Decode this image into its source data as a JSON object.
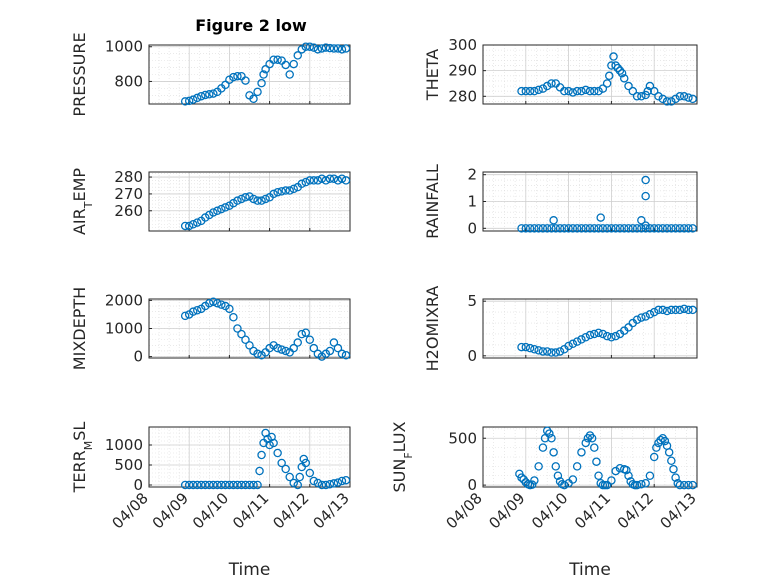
{
  "figure_title": "Figure 2 low",
  "colors": {
    "marker": "#0072BD",
    "axis": "#262626",
    "grid": "#dcdcdc",
    "background": "#ffffff"
  },
  "chart_data": [
    {
      "type": "scatter",
      "title": "Figure 2 low",
      "ylabel": "PRESSURE",
      "ylabel_parts": [
        [
          "PRESSURE",
          ""
        ]
      ],
      "xlabel": "",
      "ylim": [
        670,
        1010
      ],
      "yticks": [
        800,
        1000
      ],
      "xlim": [
        0,
        5
      ],
      "xticks": [
        "04/08",
        "04/09",
        "04/10",
        "04/11",
        "04/12",
        "04/13"
      ],
      "show_xticklabels": false,
      "grid": true,
      "legend": "none",
      "series": [
        {
          "x": [
            0.9,
            1.0,
            1.1,
            1.2,
            1.3,
            1.4,
            1.5,
            1.6,
            1.7,
            1.8,
            1.9,
            2.0,
            2.1,
            2.2,
            2.3,
            2.4,
            2.5,
            2.6,
            2.7,
            2.8,
            2.85,
            2.9,
            3.0,
            3.1,
            3.2,
            3.3,
            3.4,
            3.5,
            3.6,
            3.7,
            3.8,
            3.9,
            4.0,
            4.1,
            4.2,
            4.3,
            4.4,
            4.5,
            4.6,
            4.7,
            4.8,
            4.9
          ],
          "y": [
            685,
            688,
            695,
            705,
            715,
            722,
            726,
            730,
            740,
            760,
            780,
            810,
            825,
            830,
            830,
            805,
            720,
            700,
            740,
            790,
            840,
            870,
            900,
            925,
            925,
            920,
            895,
            840,
            900,
            950,
            985,
            1000,
            1000,
            995,
            985,
            990,
            995,
            992,
            990,
            990,
            985,
            990
          ]
        }
      ]
    },
    {
      "type": "scatter",
      "title": "",
      "ylabel": "THETA",
      "ylabel_parts": [
        [
          "THETA",
          ""
        ]
      ],
      "xlabel": "",
      "ylim": [
        277,
        300
      ],
      "yticks": [
        280,
        290,
        300
      ],
      "xlim": [
        0,
        5
      ],
      "xticks": [
        "04/08",
        "04/09",
        "04/10",
        "04/11",
        "04/12",
        "04/13"
      ],
      "show_xticklabels": false,
      "grid": true,
      "legend": "none",
      "series": [
        {
          "x": [
            0.9,
            1.0,
            1.1,
            1.2,
            1.3,
            1.4,
            1.5,
            1.6,
            1.7,
            1.8,
            1.9,
            2.0,
            2.1,
            2.2,
            2.3,
            2.4,
            2.5,
            2.6,
            2.7,
            2.8,
            2.9,
            2.95,
            3.0,
            3.05,
            3.1,
            3.15,
            3.2,
            3.25,
            3.3,
            3.4,
            3.5,
            3.6,
            3.7,
            3.8,
            3.85,
            3.9,
            4.0,
            4.1,
            4.2,
            4.3,
            4.4,
            4.5,
            4.6,
            4.7,
            4.8,
            4.9
          ],
          "y": [
            282,
            282,
            282,
            282,
            282.5,
            283,
            284,
            285,
            285,
            283.5,
            282,
            282,
            281.5,
            282,
            282,
            282.5,
            282,
            282,
            282,
            283,
            285,
            288,
            292,
            295.5,
            292,
            291,
            290,
            289,
            287,
            284,
            282,
            280,
            280,
            280.5,
            282,
            284,
            282,
            280,
            279,
            278,
            278,
            279,
            280,
            280,
            279.5,
            279
          ]
        }
      ]
    },
    {
      "type": "scatter",
      "title": "",
      "ylabel": "AIR_TEMP",
      "ylabel_parts": [
        [
          "AIR",
          ""
        ],
        [
          "T",
          "sub"
        ],
        [
          "EMP",
          ""
        ]
      ],
      "xlabel": "",
      "ylim": [
        248,
        283
      ],
      "yticks": [
        260,
        270,
        280
      ],
      "xlim": [
        0,
        5
      ],
      "xticks": [
        "04/08",
        "04/09",
        "04/10",
        "04/11",
        "04/12",
        "04/13"
      ],
      "show_xticklabels": false,
      "grid": true,
      "legend": "none",
      "series": [
        {
          "x": [
            0.9,
            1.0,
            1.1,
            1.2,
            1.3,
            1.4,
            1.5,
            1.6,
            1.7,
            1.8,
            1.9,
            2.0,
            2.1,
            2.2,
            2.3,
            2.4,
            2.5,
            2.6,
            2.7,
            2.8,
            2.9,
            3.0,
            3.1,
            3.2,
            3.3,
            3.4,
            3.5,
            3.6,
            3.7,
            3.8,
            3.9,
            4.0,
            4.1,
            4.2,
            4.3,
            4.4,
            4.5,
            4.6,
            4.7,
            4.8,
            4.9
          ],
          "y": [
            251,
            251,
            252,
            253,
            254,
            256,
            257.5,
            259,
            260,
            261,
            262,
            263,
            264.5,
            266,
            267,
            268,
            268.5,
            267,
            266,
            266,
            267,
            268,
            270,
            271,
            271.5,
            272,
            272,
            273,
            274,
            276,
            277,
            278,
            278,
            278,
            279,
            278,
            279,
            279,
            278,
            279,
            278
          ]
        }
      ]
    },
    {
      "type": "scatter",
      "title": "",
      "ylabel": "RAINFALL",
      "ylabel_parts": [
        [
          "RAINFALL",
          ""
        ]
      ],
      "xlabel": "",
      "ylim": [
        -0.1,
        2.1
      ],
      "yticks": [
        0,
        1,
        2
      ],
      "xlim": [
        0,
        5
      ],
      "xticks": [
        "04/08",
        "04/09",
        "04/10",
        "04/11",
        "04/12",
        "04/13"
      ],
      "show_xticklabels": false,
      "grid": true,
      "legend": "none",
      "series": [
        {
          "x": [
            0.9,
            1.0,
            1.1,
            1.2,
            1.3,
            1.4,
            1.5,
            1.6,
            1.7,
            1.8,
            1.9,
            2.0,
            2.1,
            2.2,
            2.3,
            2.4,
            2.5,
            2.6,
            2.7,
            2.8,
            2.9,
            3.0,
            3.1,
            3.2,
            3.3,
            3.4,
            3.5,
            3.6,
            3.7,
            3.8,
            3.9,
            4.0,
            4.1,
            4.2,
            4.3,
            4.4,
            4.5,
            4.6,
            4.7,
            4.8,
            4.9,
            1.65,
            2.75,
            3.7,
            3.8,
            3.8,
            3.8
          ],
          "y": [
            0,
            0,
            0,
            0,
            0,
            0,
            0,
            0,
            0,
            0,
            0,
            0,
            0,
            0,
            0,
            0,
            0,
            0,
            0,
            0,
            0,
            0,
            0,
            0,
            0,
            0,
            0,
            0,
            0,
            0,
            0,
            0,
            0,
            0,
            0,
            0,
            0,
            0,
            0,
            0,
            0,
            0.3,
            0.4,
            0.3,
            1.2,
            1.8,
            0.1
          ]
        }
      ]
    },
    {
      "type": "scatter",
      "title": "",
      "ylabel": "MIXDEPTH",
      "ylabel_parts": [
        [
          "MIXDEPTH",
          ""
        ]
      ],
      "xlabel": "",
      "ylim": [
        -50,
        2050
      ],
      "yticks": [
        0,
        1000,
        2000
      ],
      "xlim": [
        0,
        5
      ],
      "xticks": [
        "04/08",
        "04/09",
        "04/10",
        "04/11",
        "04/12",
        "04/13"
      ],
      "show_xticklabels": false,
      "grid": true,
      "legend": "none",
      "series": [
        {
          "x": [
            0.9,
            1.0,
            1.1,
            1.2,
            1.3,
            1.4,
            1.5,
            1.6,
            1.7,
            1.8,
            1.9,
            2.0,
            2.1,
            2.2,
            2.3,
            2.4,
            2.5,
            2.6,
            2.7,
            2.8,
            2.9,
            3.0,
            3.1,
            3.2,
            3.3,
            3.4,
            3.5,
            3.6,
            3.7,
            3.8,
            3.9,
            4.0,
            4.1,
            4.2,
            4.3,
            4.4,
            4.5,
            4.6,
            4.7,
            4.8,
            4.9
          ],
          "y": [
            1450,
            1500,
            1600,
            1650,
            1700,
            1800,
            1900,
            1950,
            1900,
            1850,
            1800,
            1700,
            1400,
            1000,
            800,
            600,
            400,
            200,
            100,
            50,
            150,
            300,
            400,
            300,
            250,
            200,
            150,
            300,
            500,
            800,
            850,
            600,
            300,
            100,
            0,
            100,
            200,
            500,
            300,
            100,
            50
          ]
        }
      ]
    },
    {
      "type": "scatter",
      "title": "",
      "ylabel": "H2OMIXRA",
      "ylabel_parts": [
        [
          "H2OMIXRA",
          ""
        ]
      ],
      "xlabel": "",
      "ylim": [
        -0.2,
        5.2
      ],
      "yticks": [
        0,
        5
      ],
      "xlim": [
        0,
        5
      ],
      "xticks": [
        "04/08",
        "04/09",
        "04/10",
        "04/11",
        "04/12",
        "04/13"
      ],
      "show_xticklabels": false,
      "grid": true,
      "legend": "none",
      "series": [
        {
          "x": [
            0.9,
            1.0,
            1.1,
            1.2,
            1.3,
            1.4,
            1.5,
            1.6,
            1.7,
            1.8,
            1.9,
            2.0,
            2.1,
            2.2,
            2.3,
            2.4,
            2.5,
            2.6,
            2.7,
            2.8,
            2.9,
            3.0,
            3.1,
            3.2,
            3.3,
            3.4,
            3.5,
            3.6,
            3.7,
            3.8,
            3.9,
            4.0,
            4.1,
            4.2,
            4.3,
            4.4,
            4.5,
            4.6,
            4.7,
            4.8,
            4.9
          ],
          "y": [
            0.8,
            0.8,
            0.7,
            0.6,
            0.5,
            0.4,
            0.4,
            0.3,
            0.3,
            0.4,
            0.6,
            0.9,
            1.1,
            1.3,
            1.5,
            1.7,
            1.9,
            2.0,
            2.1,
            2.0,
            1.8,
            1.7,
            1.8,
            2.0,
            2.3,
            2.6,
            3.0,
            3.3,
            3.5,
            3.6,
            3.8,
            4.0,
            4.2,
            4.2,
            4.1,
            4.2,
            4.2,
            4.2,
            4.3,
            4.2,
            4.2
          ]
        }
      ]
    },
    {
      "type": "scatter",
      "title": "",
      "ylabel": "TERR_MSL",
      "ylabel_parts": [
        [
          "TERR",
          ""
        ],
        [
          "M",
          "sub"
        ],
        [
          "SL",
          ""
        ]
      ],
      "xlabel": "Time",
      "ylim": [
        -50,
        1450
      ],
      "yticks": [
        0,
        500,
        1000
      ],
      "xlim": [
        0,
        5
      ],
      "xticks": [
        "04/08",
        "04/09",
        "04/10",
        "04/11",
        "04/12",
        "04/13"
      ],
      "show_xticklabels": true,
      "grid": true,
      "legend": "none",
      "series": [
        {
          "x": [
            0.9,
            1.0,
            1.1,
            1.2,
            1.3,
            1.4,
            1.5,
            1.6,
            1.7,
            1.8,
            1.9,
            2.0,
            2.1,
            2.2,
            2.3,
            2.4,
            2.5,
            2.6,
            2.7,
            2.75,
            2.8,
            2.85,
            2.9,
            2.95,
            3.0,
            3.05,
            3.1,
            3.2,
            3.3,
            3.4,
            3.5,
            3.6,
            3.7,
            3.75,
            3.8,
            3.85,
            3.9,
            4.0,
            4.1,
            4.2,
            4.3,
            4.4,
            4.5,
            4.6,
            4.7,
            4.8,
            4.9
          ],
          "y": [
            0,
            0,
            0,
            0,
            0,
            0,
            0,
            0,
            0,
            0,
            0,
            0,
            0,
            0,
            0,
            0,
            0,
            0,
            0,
            350,
            750,
            1050,
            1300,
            1150,
            1000,
            1200,
            1050,
            800,
            550,
            400,
            200,
            50,
            0,
            200,
            450,
            650,
            550,
            300,
            100,
            50,
            0,
            0,
            20,
            40,
            60,
            100,
            120
          ]
        }
      ]
    },
    {
      "type": "scatter",
      "title": "",
      "ylabel": "SUN_FLUX",
      "ylabel_parts": [
        [
          "SUN",
          ""
        ],
        [
          "F",
          "sub"
        ],
        [
          "LUX",
          ""
        ]
      ],
      "xlabel": "Time",
      "ylim": [
        -20,
        620
      ],
      "yticks": [
        0,
        500
      ],
      "xlim": [
        0,
        5
      ],
      "xticks": [
        "04/08",
        "04/09",
        "04/10",
        "04/11",
        "04/12",
        "04/13"
      ],
      "show_xticklabels": true,
      "grid": true,
      "legend": "none",
      "series": [
        {
          "x": [
            0.85,
            0.9,
            0.95,
            1.0,
            1.05,
            1.1,
            1.15,
            1.2,
            1.3,
            1.4,
            1.45,
            1.5,
            1.55,
            1.6,
            1.65,
            1.7,
            1.75,
            1.8,
            1.85,
            1.9,
            2.0,
            2.1,
            2.2,
            2.3,
            2.4,
            2.45,
            2.5,
            2.55,
            2.6,
            2.65,
            2.7,
            2.75,
            2.8,
            2.85,
            2.9,
            3.0,
            3.1,
            3.2,
            3.3,
            3.35,
            3.4,
            3.45,
            3.5,
            3.55,
            3.6,
            3.7,
            3.8,
            3.9,
            4.0,
            4.05,
            4.1,
            4.15,
            4.2,
            4.25,
            4.3,
            4.35,
            4.4,
            4.45,
            4.5,
            4.55,
            4.6,
            4.7,
            4.8,
            4.9
          ],
          "y": [
            120,
            80,
            60,
            30,
            10,
            0,
            5,
            50,
            200,
            400,
            500,
            580,
            550,
            500,
            350,
            200,
            100,
            40,
            10,
            0,
            20,
            60,
            200,
            350,
            450,
            500,
            530,
            500,
            400,
            250,
            100,
            20,
            0,
            0,
            0,
            50,
            150,
            180,
            170,
            160,
            100,
            40,
            10,
            0,
            0,
            10,
            20,
            100,
            300,
            400,
            450,
            480,
            500,
            470,
            420,
            350,
            260,
            170,
            80,
            20,
            0,
            0,
            0,
            0
          ]
        }
      ]
    }
  ]
}
